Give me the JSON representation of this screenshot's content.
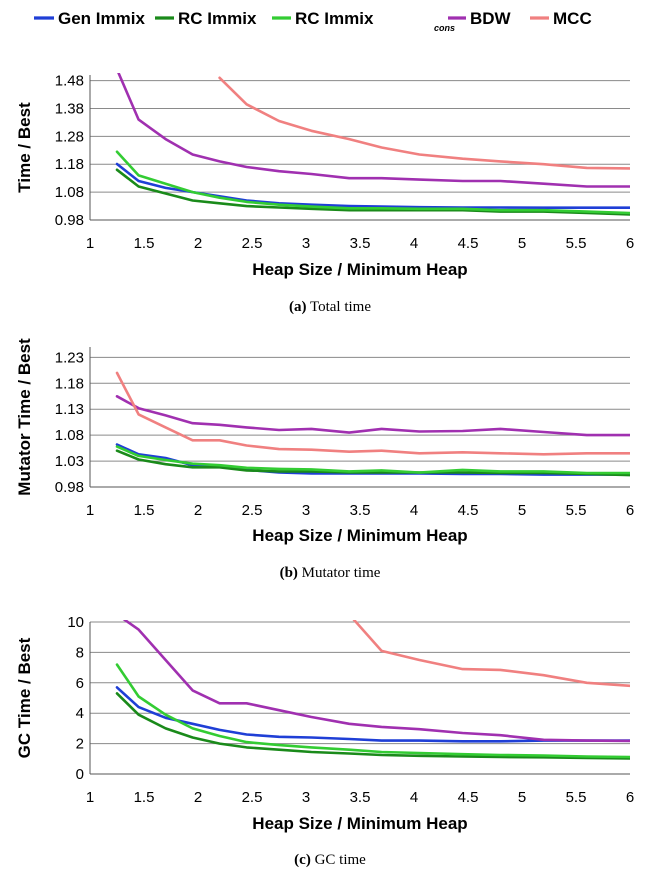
{
  "legend": {
    "entries": [
      {
        "label": "Gen Immix",
        "sub": "",
        "color": "#1f3fd6"
      },
      {
        "label": "RC Immix",
        "sub": "",
        "color": "#1a8a1a"
      },
      {
        "label": "RC Immix",
        "sub": "cons",
        "color": "#33cc33"
      },
      {
        "label": "BDW",
        "sub": "",
        "color": "#a030b0"
      },
      {
        "label": "MCC",
        "sub": "",
        "color": "#f08080"
      }
    ]
  },
  "chart_data": [
    {
      "type": "line",
      "caption_tag": "(a)",
      "caption_text": " Total time",
      "xlabel": "Heap Size / Minimum Heap",
      "ylabel": "Time / Best",
      "xlim": [
        1,
        6
      ],
      "ylim": [
        0.98,
        1.5
      ],
      "xticks": [
        1,
        1.5,
        2,
        2.5,
        3,
        3.5,
        4,
        4.5,
        5,
        5.5,
        6
      ],
      "xtick_labels": [
        "1",
        "1.5",
        "2",
        "2.5",
        "3",
        "3.5",
        "4",
        "4.5",
        "5",
        "5.5",
        "6"
      ],
      "yticks": [
        0.98,
        1.08,
        1.18,
        1.28,
        1.38,
        1.48
      ],
      "ytick_labels": [
        "0.98",
        "1.08",
        "1.18",
        "1.28",
        "1.38",
        "1.48"
      ],
      "grid": true,
      "x": [
        1.25,
        1.45,
        1.7,
        1.95,
        2.2,
        2.45,
        2.75,
        3.05,
        3.4,
        3.7,
        4.05,
        4.45,
        4.8,
        5.2,
        5.6,
        6.0
      ],
      "series": [
        {
          "name": "Gen Immix",
          "values": [
            1.181,
            1.12,
            1.095,
            1.08,
            1.065,
            1.05,
            1.04,
            1.035,
            1.03,
            1.028,
            1.026,
            1.025,
            1.025,
            1.024,
            1.024,
            1.024
          ]
        },
        {
          "name": "RC Immix",
          "values": [
            1.16,
            1.1,
            1.075,
            1.05,
            1.04,
            1.03,
            1.025,
            1.02,
            1.015,
            1.015,
            1.015,
            1.015,
            1.01,
            1.01,
            1.005,
            1.0
          ]
        },
        {
          "name": "RC Immix cons",
          "values": [
            1.225,
            1.14,
            1.11,
            1.08,
            1.06,
            1.045,
            1.035,
            1.028,
            1.022,
            1.022,
            1.02,
            1.02,
            1.015,
            1.015,
            1.01,
            1.005
          ]
        },
        {
          "name": "BDW",
          "values": [
            1.52,
            1.34,
            1.27,
            1.215,
            1.19,
            1.17,
            1.155,
            1.145,
            1.13,
            1.13,
            1.125,
            1.12,
            1.12,
            1.11,
            1.1,
            1.1
          ]
        },
        {
          "name": "MCC",
          "values": [
            null,
            null,
            null,
            null,
            1.49,
            1.395,
            1.335,
            1.3,
            1.27,
            1.24,
            1.215,
            1.2,
            1.19,
            1.18,
            1.167,
            1.165
          ]
        }
      ]
    },
    {
      "type": "line",
      "caption_tag": "(b)",
      "caption_text": " Mutator time",
      "xlabel": "Heap Size / Minimum Heap",
      "ylabel": "Mutator Time / Best",
      "xlim": [
        1,
        6
      ],
      "ylim": [
        0.98,
        1.25
      ],
      "xticks": [
        1,
        1.5,
        2,
        2.5,
        3,
        3.5,
        4,
        4.5,
        5,
        5.5,
        6
      ],
      "xtick_labels": [
        "1",
        "1.5",
        "2",
        "2.5",
        "3",
        "3.5",
        "4",
        "4.5",
        "5",
        "5.5",
        "6"
      ],
      "yticks": [
        0.98,
        1.03,
        1.08,
        1.13,
        1.18,
        1.23
      ],
      "ytick_labels": [
        "0.98",
        "1.03",
        "1.08",
        "1.13",
        "1.18",
        "1.23"
      ],
      "grid": true,
      "x": [
        1.25,
        1.45,
        1.7,
        1.95,
        2.2,
        2.45,
        2.75,
        3.05,
        3.4,
        3.7,
        4.05,
        4.45,
        4.8,
        5.2,
        5.6,
        6.0
      ],
      "series": [
        {
          "name": "Gen Immix",
          "values": [
            1.062,
            1.043,
            1.036,
            1.022,
            1.02,
            1.013,
            1.008,
            1.006,
            1.006,
            1.006,
            1.006,
            1.005,
            1.005,
            1.004,
            1.004,
            1.004
          ]
        },
        {
          "name": "RC Immix",
          "values": [
            1.05,
            1.033,
            1.024,
            1.018,
            1.018,
            1.012,
            1.01,
            1.01,
            1.008,
            1.008,
            1.008,
            1.008,
            1.007,
            1.007,
            1.005,
            1.003
          ]
        },
        {
          "name": "RC Immix cons",
          "values": [
            1.058,
            1.04,
            1.032,
            1.025,
            1.022,
            1.017,
            1.015,
            1.014,
            1.01,
            1.012,
            1.008,
            1.013,
            1.01,
            1.01,
            1.007,
            1.007
          ]
        },
        {
          "name": "BDW",
          "values": [
            1.155,
            1.132,
            1.118,
            1.103,
            1.1,
            1.095,
            1.09,
            1.092,
            1.085,
            1.092,
            1.087,
            1.088,
            1.092,
            1.086,
            1.08,
            1.08
          ]
        },
        {
          "name": "MCC",
          "values": [
            1.2,
            1.12,
            1.095,
            1.07,
            1.07,
            1.06,
            1.053,
            1.052,
            1.048,
            1.05,
            1.045,
            1.047,
            1.045,
            1.043,
            1.045,
            1.045
          ]
        }
      ]
    },
    {
      "type": "line",
      "caption_tag": "(c)",
      "caption_text": " GC time",
      "xlabel": "Heap Size / Minimum Heap",
      "ylabel": "GC Time / Best",
      "xlim": [
        1,
        6
      ],
      "ylim": [
        0,
        10
      ],
      "xticks": [
        1,
        1.5,
        2,
        2.5,
        3,
        3.5,
        4,
        4.5,
        5,
        5.5,
        6
      ],
      "xtick_labels": [
        "1",
        "1.5",
        "2",
        "2.5",
        "3",
        "3.5",
        "4",
        "4.5",
        "5",
        "5.5",
        "6"
      ],
      "yticks": [
        0,
        2,
        4,
        6,
        8,
        10
      ],
      "ytick_labels": [
        "0",
        "2",
        "4",
        "6",
        "8",
        "10"
      ],
      "grid": true,
      "x": [
        1.25,
        1.45,
        1.7,
        1.95,
        2.2,
        2.45,
        2.75,
        3.05,
        3.4,
        3.7,
        4.05,
        4.45,
        4.8,
        5.2,
        5.6,
        6.0
      ],
      "series": [
        {
          "name": "Gen Immix",
          "values": [
            5.7,
            4.4,
            3.7,
            3.3,
            2.9,
            2.6,
            2.45,
            2.4,
            2.3,
            2.2,
            2.2,
            2.15,
            2.15,
            2.2,
            2.2,
            2.2
          ]
        },
        {
          "name": "RC Immix",
          "values": [
            5.3,
            3.9,
            3.0,
            2.4,
            2.0,
            1.75,
            1.6,
            1.45,
            1.35,
            1.25,
            1.2,
            1.15,
            1.12,
            1.1,
            1.05,
            1.02
          ]
        },
        {
          "name": "RC Immix cons",
          "values": [
            7.2,
            5.1,
            3.9,
            3.0,
            2.5,
            2.1,
            1.9,
            1.75,
            1.6,
            1.45,
            1.38,
            1.3,
            1.25,
            1.22,
            1.15,
            1.12
          ]
        },
        {
          "name": "BDW",
          "values": [
            10.5,
            9.5,
            7.5,
            5.5,
            4.65,
            4.65,
            4.2,
            3.75,
            3.3,
            3.1,
            2.95,
            2.7,
            2.55,
            2.25,
            2.2,
            2.18
          ]
        },
        {
          "name": "MCC",
          "values": [
            null,
            null,
            null,
            null,
            null,
            null,
            null,
            null,
            10.5,
            8.1,
            7.5,
            6.9,
            6.85,
            6.5,
            6.0,
            5.8
          ]
        }
      ]
    }
  ]
}
